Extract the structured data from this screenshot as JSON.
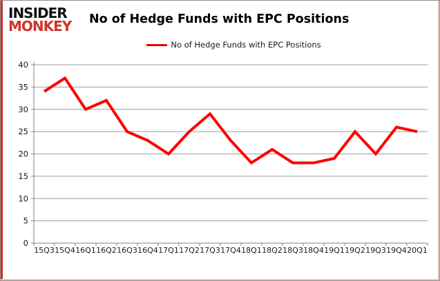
{
  "brand": {
    "line1": "INSIDER",
    "line2": "MONKEY"
  },
  "header": {
    "title": "No of Hedge Funds with EPC Positions"
  },
  "legend": {
    "label": "No of Hedge Funds with EPC Positions"
  },
  "colors": {
    "series_red": "#fe0000",
    "legend_red": "#e30000",
    "brand_black": "#111111",
    "brand_red": "#d0342c",
    "gridline": "#9a9a9a",
    "axis": "#808080",
    "tick_text": "#1a1a1a"
  },
  "chart_data": {
    "type": "line",
    "title": "No of Hedge Funds with EPC Positions",
    "categories": [
      "15Q3",
      "15Q4",
      "16Q1",
      "16Q2",
      "16Q3",
      "16Q4",
      "17Q1",
      "17Q2",
      "17Q3",
      "17Q4",
      "18Q1",
      "18Q2",
      "18Q3",
      "18Q4",
      "19Q1",
      "19Q2",
      "19Q3",
      "19Q4",
      "20Q1"
    ],
    "series": [
      {
        "name": "No of Hedge Funds with EPC Positions",
        "values": [
          34,
          37,
          30,
          32,
          25,
          23,
          20,
          25,
          29,
          23,
          18,
          21,
          18,
          18,
          19,
          25,
          20,
          26,
          25
        ]
      }
    ],
    "xlabel": "",
    "ylabel": "",
    "ylim": [
      0,
      40
    ],
    "ytick_step": 5,
    "grid": true,
    "legend_position": "top"
  }
}
